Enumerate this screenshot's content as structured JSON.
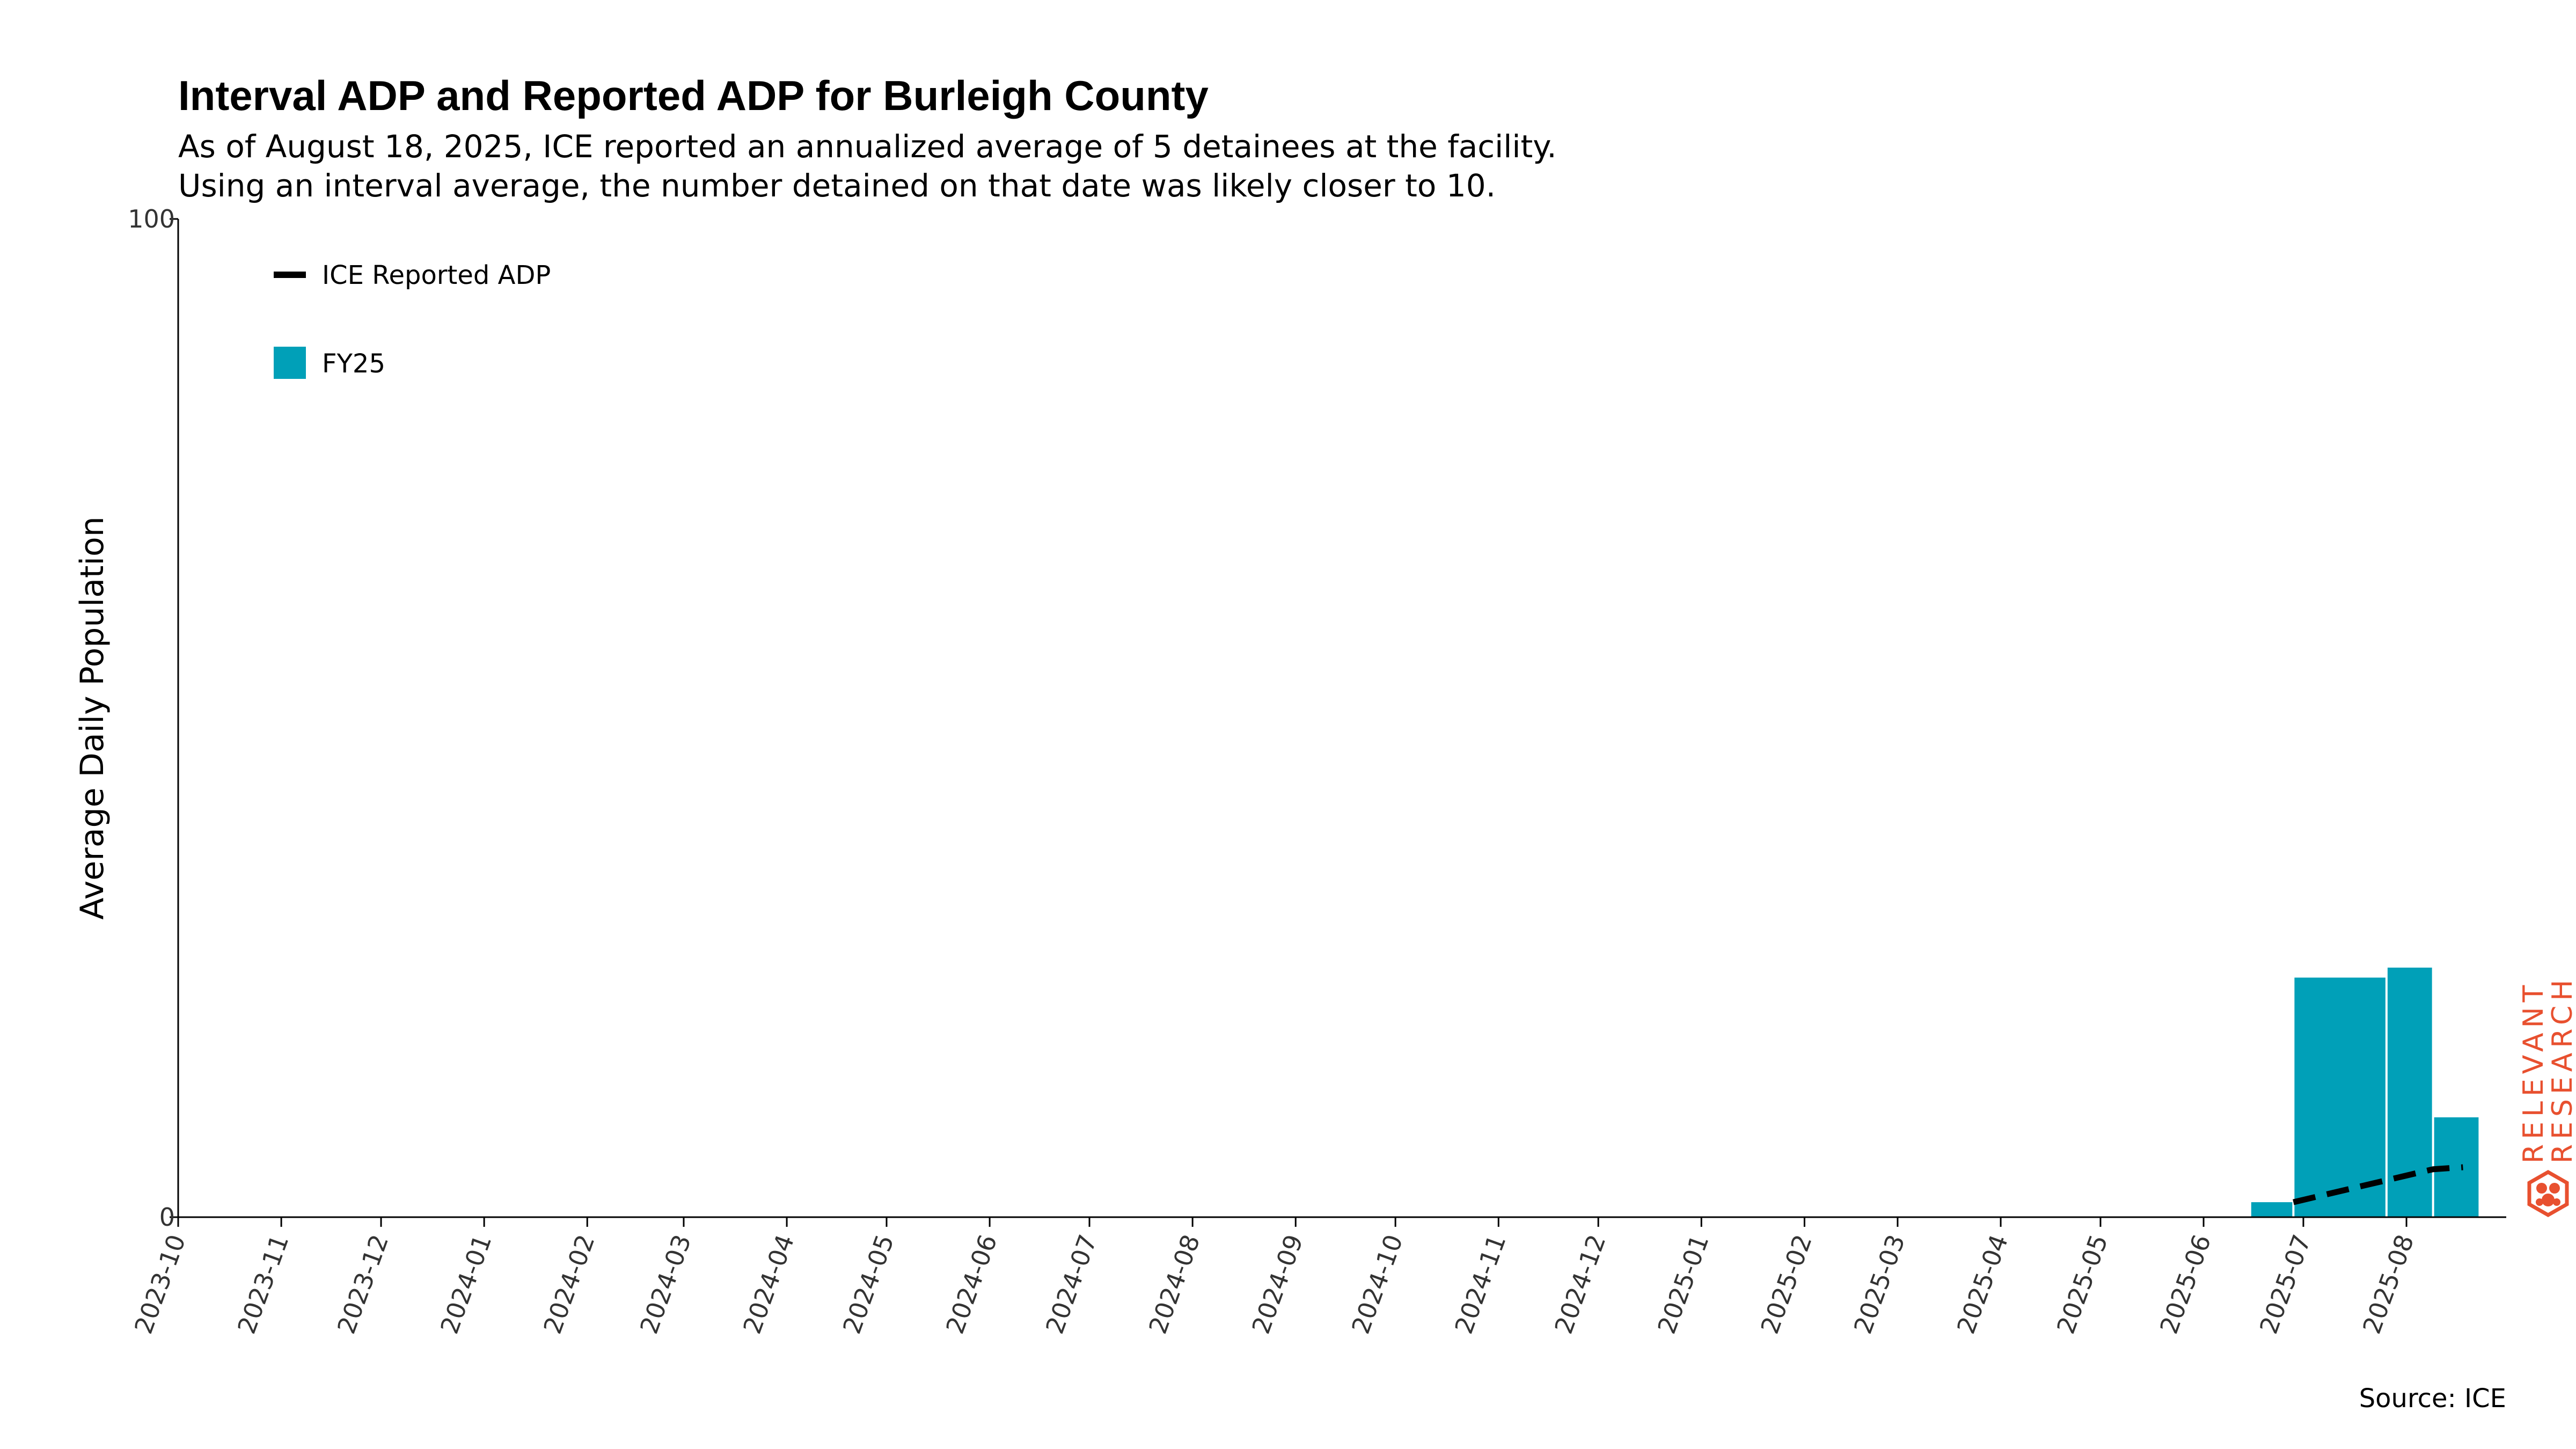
{
  "chart_data": {
    "type": "bar",
    "title": "Interval ADP and Reported ADP for Burleigh County",
    "subtitle": [
      "As of August 18, 2025, ICE reported an annualized average of 5 detainees at the facility.",
      "Using an interval average, the number detained on that date was likely closer to 10."
    ],
    "ylabel": "Average Daily Population",
    "xlabel": "",
    "ylim": [
      0,
      100
    ],
    "yticks": [
      0,
      100
    ],
    "xlim": [
      "2023-10-01",
      "2025-08-31"
    ],
    "xticks": [
      "2023-10",
      "2023-11",
      "2023-12",
      "2024-01",
      "2024-02",
      "2024-03",
      "2024-04",
      "2024-05",
      "2024-06",
      "2024-07",
      "2024-08",
      "2024-09",
      "2024-10",
      "2024-11",
      "2024-12",
      "2025-01",
      "2025-02",
      "2025-03",
      "2025-04",
      "2025-05",
      "2025-06",
      "2025-07",
      "2025-08"
    ],
    "grid": false,
    "legend_position": "top-left",
    "legend": [
      {
        "label": "ICE Reported ADP",
        "kind": "dashed-line",
        "color": "#000000"
      },
      {
        "label": "FY25",
        "kind": "bar",
        "color": "#00a0b8"
      }
    ],
    "bars": {
      "name": "FY25",
      "color": "#00a0b8",
      "intervals": [
        {
          "start": "2025-06-15",
          "end": "2025-06-28",
          "value": 1.5
        },
        {
          "start": "2025-06-28",
          "end": "2025-07-26",
          "value": 24
        },
        {
          "start": "2025-07-26",
          "end": "2025-08-09",
          "value": 25
        },
        {
          "start": "2025-08-09",
          "end": "2025-08-23",
          "value": 10
        }
      ]
    },
    "line": {
      "name": "ICE Reported ADP",
      "color": "#000000",
      "style": "dashed",
      "points": [
        {
          "x": "2025-06-28",
          "y": 1.5
        },
        {
          "x": "2025-07-12",
          "y": 2.6
        },
        {
          "x": "2025-07-26",
          "y": 3.7
        },
        {
          "x": "2025-08-09",
          "y": 4.8
        },
        {
          "x": "2025-08-18",
          "y": 5
        }
      ]
    },
    "source": "Source: ICE"
  },
  "branding": {
    "logo_line1": "RELEVANT",
    "logo_line2": "RESEARCH",
    "logo_icon": "hexagon-molecule-icon",
    "logo_color": "#e8502f"
  }
}
